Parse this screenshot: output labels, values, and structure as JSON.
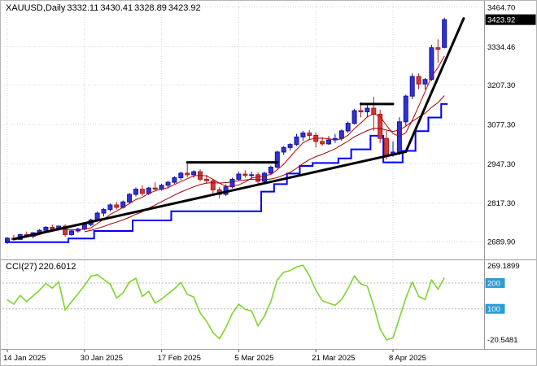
{
  "header": {
    "symbol_period": "XAUUSD,Daily",
    "open": "3332.11",
    "high": "3430.41",
    "low": "3328.89",
    "close": "3423.92"
  },
  "indicator_label": {
    "name": "CCI(27)",
    "value": "220.6012"
  },
  "colors": {
    "background": "#ffffff",
    "up_candle": "#3232D2",
    "up_candle_border": "#1414A0",
    "down_candle": "#D23A3A",
    "down_candle_border": "#A51C1C",
    "ma_fast": "#C00000",
    "ma_slow": "#A00000",
    "step_line": "#0000FF",
    "trend_line": "#000000",
    "cci_line": "#7FD42C",
    "level_badge": "#2E9BD6",
    "price_badge_bg": "#000000",
    "price_badge_text": "#ffffff",
    "grid": "#d6d6d6",
    "level_line": "#b8b8b8",
    "panel_border": "#9a9a9a",
    "axis_text": "#000000"
  },
  "chart_data": {
    "type": "candlestick",
    "symbol": "XAUUSD",
    "timeframe": "Daily",
    "title": "XAUUSD,Daily 3332.11 3430.41 3328.89 3423.92",
    "price_axis": {
      "labels": [
        {
          "text": "3464.70",
          "value": 3464.7
        },
        {
          "text": "3334.46",
          "value": 3334.46
        },
        {
          "text": "3207.30",
          "value": 3207.3
        },
        {
          "text": "3077.30",
          "value": 3077.3
        },
        {
          "text": "2947.30",
          "value": 2947.3
        },
        {
          "text": "2817.30",
          "value": 2817.3
        },
        {
          "text": "2689.90",
          "value": 2689.9
        }
      ],
      "top_value": 3464.7,
      "bottom_value": 2689.9,
      "current_price": "3423.92",
      "current_price_value": 3423.92
    },
    "time_axis": {
      "ticks": [
        {
          "index": 0,
          "label": "14 Jan 2025"
        },
        {
          "index": 12,
          "label": "30 Jan 2025"
        },
        {
          "index": 24,
          "label": "17 Feb 2025"
        },
        {
          "index": 36,
          "label": "5 Mar 2025"
        },
        {
          "index": 48,
          "label": "21 Mar 2025"
        },
        {
          "index": 60,
          "label": "8 Apr 2025"
        }
      ]
    },
    "ohlc": [
      [
        2690,
        2705,
        2682,
        2701
      ],
      [
        2701,
        2712,
        2694,
        2697
      ],
      [
        2697,
        2716,
        2695,
        2713
      ],
      [
        2713,
        2723,
        2703,
        2707
      ],
      [
        2707,
        2721,
        2701,
        2719
      ],
      [
        2719,
        2731,
        2711,
        2727
      ],
      [
        2727,
        2741,
        2721,
        2737
      ],
      [
        2737,
        2746,
        2723,
        2731
      ],
      [
        2731,
        2743,
        2726,
        2741
      ],
      [
        2741,
        2747,
        2706,
        2713
      ],
      [
        2713,
        2729,
        2709,
        2725
      ],
      [
        2725,
        2736,
        2719,
        2731
      ],
      [
        2731,
        2749,
        2727,
        2746
      ],
      [
        2746,
        2766,
        2741,
        2761
      ],
      [
        2761,
        2789,
        2756,
        2784
      ],
      [
        2784,
        2801,
        2773,
        2796
      ],
      [
        2796,
        2816,
        2789,
        2811
      ],
      [
        2811,
        2821,
        2796,
        2803
      ],
      [
        2803,
        2826,
        2799,
        2821
      ],
      [
        2821,
        2851,
        2816,
        2846
      ],
      [
        2846,
        2869,
        2839,
        2863
      ],
      [
        2863,
        2876,
        2841,
        2849
      ],
      [
        2849,
        2871,
        2843,
        2867
      ],
      [
        2867,
        2886,
        2856,
        2863
      ],
      [
        2863,
        2881,
        2859,
        2876
      ],
      [
        2876,
        2891,
        2866,
        2886
      ],
      [
        2886,
        2906,
        2881,
        2901
      ],
      [
        2901,
        2921,
        2893,
        2916
      ],
      [
        2916,
        2952,
        2903,
        2911
      ],
      [
        2911,
        2926,
        2901,
        2921
      ],
      [
        2921,
        2929,
        2889,
        2896
      ],
      [
        2896,
        2911,
        2881,
        2891
      ],
      [
        2891,
        2896,
        2848,
        2861
      ],
      [
        2861,
        2871,
        2833,
        2846
      ],
      [
        2846,
        2879,
        2841,
        2871
      ],
      [
        2871,
        2901,
        2866,
        2896
      ],
      [
        2896,
        2921,
        2891,
        2913
      ],
      [
        2913,
        2926,
        2901,
        2909
      ],
      [
        2909,
        2921,
        2896,
        2911
      ],
      [
        2911,
        2919,
        2881,
        2889
      ],
      [
        2889,
        2921,
        2886,
        2916
      ],
      [
        2916,
        2941,
        2911,
        2936
      ],
      [
        2936,
        2991,
        2931,
        2986
      ],
      [
        2986,
        3006,
        2976,
        3001
      ],
      [
        3001,
        3016,
        2991,
        3011
      ],
      [
        3011,
        3046,
        3006,
        3036
      ],
      [
        3036,
        3056,
        3023,
        3049
      ],
      [
        3049,
        3059,
        3026,
        3041
      ],
      [
        3041,
        3051,
        3001,
        3021
      ],
      [
        3021,
        3036,
        3006,
        3013
      ],
      [
        3013,
        3039,
        3009,
        3026
      ],
      [
        3026,
        3046,
        3016,
        3031
      ],
      [
        3031,
        3061,
        3023,
        3056
      ],
      [
        3056,
        3087,
        3049,
        3081
      ],
      [
        3081,
        3129,
        3077,
        3123
      ],
      [
        3123,
        3151,
        3101,
        3119
      ],
      [
        3119,
        3141,
        3101,
        3131
      ],
      [
        3131,
        3169,
        3056,
        3111
      ],
      [
        3111,
        3126,
        3016,
        3031
      ],
      [
        3031,
        3056,
        2961,
        2976
      ],
      [
        2976,
        3021,
        2971,
        2986
      ],
      [
        2986,
        3101,
        2976,
        3086
      ],
      [
        3086,
        3176,
        3073,
        3171
      ],
      [
        3171,
        3246,
        3161,
        3236
      ],
      [
        3236,
        3246,
        3194,
        3211
      ],
      [
        3211,
        3231,
        3193,
        3226
      ],
      [
        3226,
        3341,
        3221,
        3331
      ],
      [
        3331,
        3359,
        3281,
        3326
      ],
      [
        3332.11,
        3430.41,
        3328.89,
        3423.92
      ]
    ],
    "overlays": {
      "ma_fast_period": 5,
      "ma_slow_period": 13,
      "step_line": [
        2688,
        2688,
        2688,
        2688,
        2688,
        2688,
        2688,
        2688,
        2688,
        2688,
        2700,
        2700,
        2700,
        2700,
        2725,
        2725,
        2725,
        2725,
        2725,
        2725,
        2760,
        2760,
        2760,
        2760,
        2760,
        2760,
        2790,
        2790,
        2790,
        2790,
        2790,
        2790,
        2790,
        2790,
        2790,
        2790,
        2790,
        2790,
        2790,
        2790,
        2855,
        2855,
        2880,
        2880,
        2915,
        2915,
        2940,
        2940,
        2950,
        2950,
        2950,
        2950,
        2965,
        2965,
        2995,
        2995,
        2995,
        3040,
        3040,
        2952,
        2952,
        2952,
        2990,
        2990,
        3055,
        3055,
        3100,
        3100,
        3145
      ],
      "trend_lines": [
        {
          "from": [
            1,
            2698
          ],
          "to": [
            62,
            2987
          ]
        },
        {
          "from": [
            28,
            2952
          ],
          "to": [
            42,
            2952
          ]
        },
        {
          "from": [
            55,
            3145
          ],
          "to": [
            60,
            3145
          ]
        },
        {
          "from": [
            62,
            2987
          ],
          "to": [
            71,
            3428
          ]
        }
      ]
    },
    "indicator": {
      "name": "CCI",
      "period": 27,
      "current_value": 220.6012,
      "axis": {
        "top_label": "269.1899",
        "bottom_label": "-20.5481",
        "top_value": 269.1899,
        "bottom_value": -20.5481,
        "levels": [
          {
            "label": "200",
            "value": 200
          },
          {
            "label": "100",
            "value": 100
          }
        ]
      },
      "values": [
        135,
        118,
        152,
        128,
        150,
        172,
        198,
        180,
        205,
        95,
        128,
        158,
        190,
        226,
        232,
        214,
        196,
        142,
        162,
        204,
        218,
        148,
        168,
        122,
        138,
        158,
        178,
        202,
        156,
        146,
        84,
        52,
        8,
        -16,
        28,
        82,
        118,
        98,
        92,
        34,
        72,
        128,
        212,
        242,
        248,
        262,
        269.1899,
        228,
        172,
        132,
        122,
        114,
        136,
        178,
        228,
        196,
        188,
        112,
        22,
        -20.5481,
        -12,
        64,
        142,
        204,
        148,
        136,
        212,
        176,
        220.6012
      ]
    }
  }
}
